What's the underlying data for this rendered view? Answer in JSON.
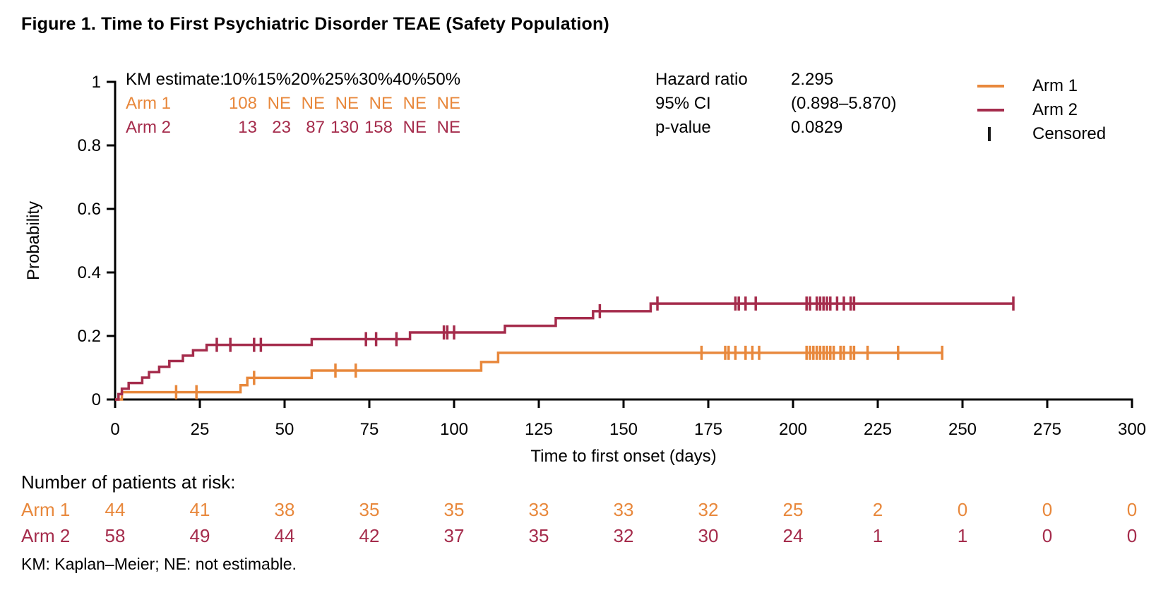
{
  "figure": {
    "title": "Figure 1. Time to First Psychiatric Disorder TEAE (Safety Population)"
  },
  "colors": {
    "arm1": "#E8883C",
    "arm2": "#A52C4C",
    "axis": "#000000"
  },
  "km_table": {
    "label": "KM estimate:",
    "headers": [
      "10%",
      "15%",
      "20%",
      "25%",
      "30%",
      "40%",
      "50%"
    ],
    "rows": [
      {
        "name": "Arm 1",
        "color": "#E8883C",
        "values": [
          "108",
          "NE",
          "NE",
          "NE",
          "NE",
          "NE",
          "NE"
        ]
      },
      {
        "name": "Arm 2",
        "color": "#A52C4C",
        "values": [
          "13",
          "23",
          "87",
          "130",
          "158",
          "NE",
          "NE"
        ]
      }
    ]
  },
  "stats": {
    "hazard_ratio_label": "Hazard ratio",
    "hazard_ratio": "2.295",
    "ci_label": "95% CI",
    "ci": "(0.898–5.870)",
    "p_label": "p-value",
    "p": "0.0829"
  },
  "legend": {
    "items": [
      {
        "label": "Arm 1",
        "type": "line",
        "color": "#E8883C"
      },
      {
        "label": "Arm 2",
        "type": "line",
        "color": "#A52C4C"
      },
      {
        "label": "Censored",
        "type": "tick",
        "color": "#1a1a1a"
      }
    ]
  },
  "chart_data": {
    "type": "line",
    "subtype": "kaplan_meier_step",
    "title": "Time to First Psychiatric Disorder TEAE (Safety Population)",
    "xlabel": "Time to first onset (days)",
    "ylabel": "Probability",
    "xlim": [
      0,
      300
    ],
    "xticks": [
      0,
      25,
      50,
      75,
      100,
      125,
      150,
      175,
      200,
      225,
      250,
      275,
      300
    ],
    "ylim": [
      0,
      1
    ],
    "yticks": [
      0,
      0.2,
      0.4,
      0.6,
      0.8,
      1
    ],
    "ytick_labels": [
      "0",
      "0.2",
      "0.4",
      "0.6",
      "0.8",
      "1"
    ],
    "grid": false,
    "legend_position": "top-right",
    "series": [
      {
        "name": "Arm 1",
        "color": "#E8883C",
        "steps": [
          [
            0,
            0
          ],
          [
            2,
            0.023
          ],
          [
            37,
            0.045
          ],
          [
            39,
            0.068
          ],
          [
            58,
            0.091
          ],
          [
            108,
            0.118
          ],
          [
            113,
            0.147
          ]
        ],
        "end_x": 244,
        "censored": [
          [
            18,
            0.023
          ],
          [
            24,
            0.023
          ],
          [
            41,
            0.068
          ],
          [
            65,
            0.091
          ],
          [
            71,
            0.091
          ],
          [
            173,
            0.147
          ],
          [
            180,
            0.147
          ],
          [
            181,
            0.147
          ],
          [
            183,
            0.147
          ],
          [
            186,
            0.147
          ],
          [
            188,
            0.147
          ],
          [
            190,
            0.147
          ],
          [
            204,
            0.147
          ],
          [
            205,
            0.147
          ],
          [
            206,
            0.147
          ],
          [
            207,
            0.147
          ],
          [
            208,
            0.147
          ],
          [
            209,
            0.147
          ],
          [
            210,
            0.147
          ],
          [
            211,
            0.147
          ],
          [
            212,
            0.147
          ],
          [
            214,
            0.147
          ],
          [
            215,
            0.147
          ],
          [
            217,
            0.147
          ],
          [
            218,
            0.147
          ],
          [
            222,
            0.147
          ],
          [
            231,
            0.147
          ],
          [
            244,
            0.147
          ]
        ]
      },
      {
        "name": "Arm 2",
        "color": "#A52C4C",
        "steps": [
          [
            0,
            0
          ],
          [
            1,
            0.017
          ],
          [
            2,
            0.034
          ],
          [
            4,
            0.052
          ],
          [
            8,
            0.069
          ],
          [
            10,
            0.086
          ],
          [
            13,
            0.103
          ],
          [
            16,
            0.121
          ],
          [
            20,
            0.138
          ],
          [
            23,
            0.155
          ],
          [
            27,
            0.172
          ],
          [
            58,
            0.19
          ],
          [
            87,
            0.211
          ],
          [
            115,
            0.232
          ],
          [
            130,
            0.256
          ],
          [
            141,
            0.278
          ],
          [
            158,
            0.302
          ]
        ],
        "end_x": 265,
        "censored": [
          [
            30,
            0.172
          ],
          [
            34,
            0.172
          ],
          [
            41,
            0.172
          ],
          [
            43,
            0.172
          ],
          [
            74,
            0.19
          ],
          [
            77,
            0.19
          ],
          [
            83,
            0.19
          ],
          [
            97,
            0.211
          ],
          [
            98,
            0.211
          ],
          [
            100,
            0.211
          ],
          [
            143,
            0.278
          ],
          [
            160,
            0.302
          ],
          [
            183,
            0.302
          ],
          [
            184,
            0.302
          ],
          [
            186,
            0.302
          ],
          [
            189,
            0.302
          ],
          [
            204,
            0.302
          ],
          [
            205,
            0.302
          ],
          [
            207,
            0.302
          ],
          [
            208,
            0.302
          ],
          [
            209,
            0.302
          ],
          [
            210,
            0.302
          ],
          [
            211,
            0.302
          ],
          [
            213,
            0.302
          ],
          [
            215,
            0.302
          ],
          [
            217,
            0.302
          ],
          [
            218,
            0.302
          ],
          [
            265,
            0.302
          ]
        ]
      }
    ]
  },
  "risk_table": {
    "heading": "Number of patients at risk:",
    "time_points": [
      0,
      25,
      50,
      75,
      100,
      125,
      150,
      175,
      200,
      225,
      250,
      275,
      300
    ],
    "rows": [
      {
        "name": "Arm 1",
        "color": "#E8883C",
        "counts": [
          "44",
          "41",
          "38",
          "35",
          "35",
          "33",
          "33",
          "32",
          "25",
          "2",
          "0",
          "0",
          "0"
        ]
      },
      {
        "name": "Arm 2",
        "color": "#A52C4C",
        "counts": [
          "58",
          "49",
          "44",
          "42",
          "37",
          "35",
          "32",
          "30",
          "24",
          "1",
          "1",
          "0",
          "0"
        ]
      }
    ]
  },
  "footnote": "KM: Kaplan–Meier; NE: not estimable."
}
